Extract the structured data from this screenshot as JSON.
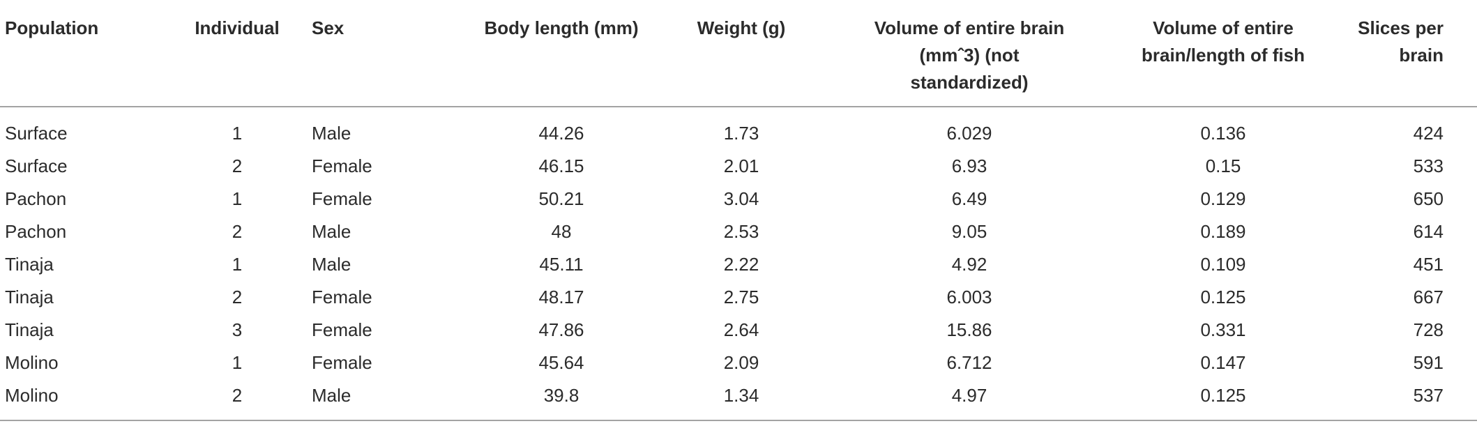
{
  "table": {
    "columns": [
      [
        "Population"
      ],
      [
        "Individual"
      ],
      [
        "Sex"
      ],
      [
        "Body length (mm)"
      ],
      [
        "Weight (g)"
      ],
      [
        "Volume of entire brain",
        "(mmˆ3) (not",
        "standardized)"
      ],
      [
        "Volume of entire",
        "brain/length of fish"
      ],
      [
        "Slices per",
        "brain"
      ]
    ],
    "rows": [
      [
        "Surface",
        1,
        "Male",
        44.26,
        1.73,
        6.029,
        0.136,
        424
      ],
      [
        "Surface",
        2,
        "Female",
        46.15,
        2.01,
        6.93,
        0.15,
        533
      ],
      [
        "Pachon",
        1,
        "Female",
        50.21,
        3.04,
        6.49,
        0.129,
        650
      ],
      [
        "Pachon",
        2,
        "Male",
        48,
        2.53,
        9.05,
        0.189,
        614
      ],
      [
        "Tinaja",
        1,
        "Male",
        45.11,
        2.22,
        4.92,
        0.109,
        451
      ],
      [
        "Tinaja",
        2,
        "Female",
        48.17,
        2.75,
        6.003,
        0.125,
        667
      ],
      [
        "Tinaja",
        3,
        "Female",
        47.86,
        2.64,
        15.86,
        0.331,
        728
      ],
      [
        "Molino",
        1,
        "Female",
        45.64,
        2.09,
        6.712,
        0.147,
        591
      ],
      [
        "Molino",
        2,
        "Male",
        39.8,
        1.34,
        4.97,
        0.125,
        537
      ]
    ]
  }
}
